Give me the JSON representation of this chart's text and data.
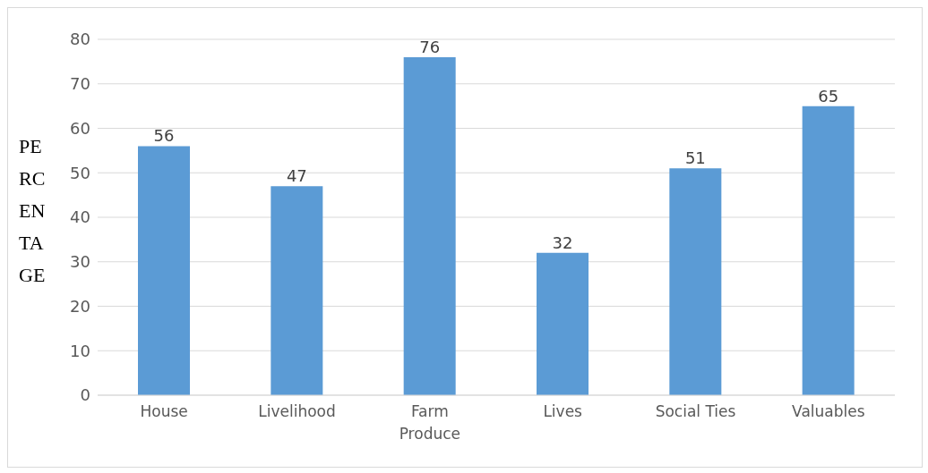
{
  "chart_data": {
    "type": "bar",
    "ylabel": "PERCENTAGE",
    "categories": [
      "House",
      "Livelihood",
      "Farm Produce",
      "Lives",
      "Social Ties",
      "Valuables"
    ],
    "values": [
      56,
      47,
      76,
      32,
      51,
      65
    ],
    "color": "#5b9bd5",
    "ylim": [
      0,
      80
    ],
    "yticks": [
      0,
      10,
      20,
      30,
      40,
      50,
      60,
      70,
      80
    ],
    "grid": "y",
    "data_labels": true
  }
}
